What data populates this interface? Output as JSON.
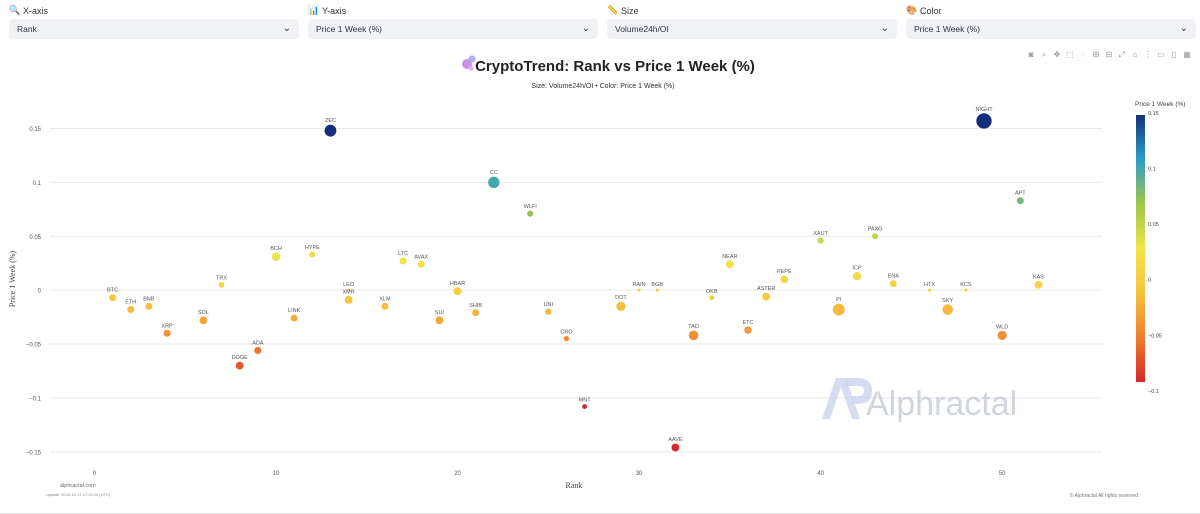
{
  "controls": [
    {
      "label": "X-axis",
      "icon": "magnifier-icon",
      "glyph": "🔍",
      "value": "Rank"
    },
    {
      "label": "Y-axis",
      "icon": "bar-chart-icon",
      "glyph": "📊",
      "value": "Price 1 Week (%)"
    },
    {
      "label": "Size",
      "icon": "ruler-icon",
      "glyph": "📏",
      "value": "Volume24h/OI"
    },
    {
      "label": "Color",
      "icon": "palette-icon",
      "glyph": "🎨",
      "value": "Price 1 Week (%)"
    }
  ],
  "modebar": [
    "camera-icon",
    "zoom-icon",
    "pan-icon",
    "box-select-icon",
    "lasso-select-icon",
    "zoom-in-icon",
    "zoom-out-icon",
    "autoscale-icon",
    "reset-axes-icon",
    "spike-lines-icon",
    "hover-closest-icon",
    "hover-compare-icon",
    "plotly-logo-icon"
  ],
  "chart_data": {
    "type": "scatter",
    "title": "CryptoTrend: Rank vs Price 1 Week (%)",
    "subtitle": "Size: Volume24h/OI • Color: Price 1 Week (%)",
    "xlabel": "Rank",
    "ylabel": "Price 1 Week (%)",
    "xlim": [
      -3,
      55.5
    ],
    "ylim": [
      -0.165,
      0.182
    ],
    "x_ticks": [
      0,
      10,
      20,
      30,
      40,
      50
    ],
    "y_ticks": [
      -0.15,
      -0.1,
      -0.05,
      0,
      0.05,
      0.1,
      0.15
    ],
    "y_tick_labels": [
      "−0.15",
      "−0.1",
      "−0.05",
      "0",
      "0.05",
      "0.1",
      "0.15"
    ],
    "colorbar": {
      "title": "Price 1 Week (%)",
      "range": [
        -0.092,
        0.148
      ],
      "ticks": [
        0.15,
        0.1,
        0.05,
        0,
        -0.05,
        -0.1
      ],
      "tick_labels": [
        "0.15",
        "0.1",
        "0.05",
        "0",
        "−0.05",
        "−0.1"
      ],
      "colorscale": [
        "#d62728",
        "#ef7d2e",
        "#f7c33d",
        "#f2e44a",
        "#9cc84a",
        "#2e9ec8",
        "#12307a"
      ]
    },
    "grid": true,
    "points": [
      {
        "label": "BTC",
        "x": 1,
        "y": -0.007,
        "size": 1
      },
      {
        "label": "ETH",
        "x": 2,
        "y": -0.018,
        "size": 1
      },
      {
        "label": "BNB",
        "x": 3,
        "y": -0.015,
        "size": 1
      },
      {
        "label": "XRP",
        "x": 4,
        "y": -0.04,
        "size": 1
      },
      {
        "label": "SOL",
        "x": 6,
        "y": -0.028,
        "size": 1.2
      },
      {
        "label": "TRX",
        "x": 7,
        "y": 0.005,
        "size": 0.7
      },
      {
        "label": "DOGE",
        "x": 8,
        "y": -0.07,
        "size": 1.2
      },
      {
        "label": "ADA",
        "x": 9,
        "y": -0.056,
        "size": 1
      },
      {
        "label": "BCH",
        "x": 10,
        "y": 0.031,
        "size": 1.3
      },
      {
        "label": "LINK",
        "x": 11,
        "y": -0.026,
        "size": 1
      },
      {
        "label": "HYPE",
        "x": 12,
        "y": 0.033,
        "size": 0.8
      },
      {
        "label": "LEO",
        "x": 14,
        "y": 0,
        "size": 0.1
      },
      {
        "label": "XMR",
        "x": 14,
        "y": -0.009,
        "size": 1.2
      },
      {
        "label": "XLM",
        "x": 16,
        "y": -0.015,
        "size": 1
      },
      {
        "label": "LTC",
        "x": 17,
        "y": 0.027,
        "size": 1
      },
      {
        "label": "AVAX",
        "x": 18,
        "y": 0.024,
        "size": 1
      },
      {
        "label": "SUI",
        "x": 19,
        "y": -0.028,
        "size": 1.2
      },
      {
        "label": "HBAR",
        "x": 20,
        "y": -0.001,
        "size": 1.2
      },
      {
        "label": "SHIB",
        "x": 21,
        "y": -0.021,
        "size": 1
      },
      {
        "label": "CC",
        "x": 22,
        "y": 0.1,
        "size": 2
      },
      {
        "label": "WLFI",
        "x": 24,
        "y": 0.071,
        "size": 0.8
      },
      {
        "label": "UNI",
        "x": 25,
        "y": -0.02,
        "size": 0.8
      },
      {
        "label": "CRO",
        "x": 26,
        "y": -0.045,
        "size": 0.6
      },
      {
        "label": "MNT",
        "x": 27,
        "y": -0.108,
        "size": 0.5
      },
      {
        "label": "DOT",
        "x": 29,
        "y": -0.015,
        "size": 1.5
      },
      {
        "label": "RAIN",
        "x": 30,
        "y": 0,
        "size": 0.1
      },
      {
        "label": "BGB",
        "x": 31,
        "y": 0,
        "size": 0.1
      },
      {
        "label": "AAVE",
        "x": 32,
        "y": -0.146,
        "size": 1.2
      },
      {
        "label": "TAO",
        "x": 33,
        "y": -0.042,
        "size": 1.6
      },
      {
        "label": "OKB",
        "x": 34,
        "y": -0.007,
        "size": 0.5
      },
      {
        "label": "NEAR",
        "x": 35,
        "y": 0.024,
        "size": 1.2
      },
      {
        "label": "ETC",
        "x": 36,
        "y": -0.037,
        "size": 1.1
      },
      {
        "label": "ASTER",
        "x": 37,
        "y": -0.006,
        "size": 1.2
      },
      {
        "label": "PEPE",
        "x": 38,
        "y": 0.01,
        "size": 1.1
      },
      {
        "label": "XAUT",
        "x": 40,
        "y": 0.046,
        "size": 0.8
      },
      {
        "label": "PI",
        "x": 41,
        "y": -0.018,
        "size": 2.1
      },
      {
        "label": "ICP",
        "x": 42,
        "y": 0.013,
        "size": 1.3
      },
      {
        "label": "PAXG",
        "x": 43,
        "y": 0.05,
        "size": 0.8
      },
      {
        "label": "ENA",
        "x": 44,
        "y": 0.006,
        "size": 1
      },
      {
        "label": "HTX",
        "x": 46,
        "y": 0,
        "size": 0.1
      },
      {
        "label": "SKY",
        "x": 47,
        "y": -0.018,
        "size": 1.8
      },
      {
        "label": "KCS",
        "x": 48,
        "y": 0,
        "size": 0.1
      },
      {
        "label": "NIGHT",
        "x": 49,
        "y": 0.157,
        "size": 2.9
      },
      {
        "label": "WLD",
        "x": 50,
        "y": -0.042,
        "size": 1.5
      },
      {
        "label": "APT",
        "x": 51,
        "y": 0.083,
        "size": 1
      },
      {
        "label": "KAS",
        "x": 52,
        "y": 0.005,
        "size": 1.2
      },
      {
        "label": "ZEC",
        "x": 13,
        "y": 0.148,
        "size": 2.1
      }
    ],
    "annotations": {
      "source": "alphractal.com",
      "updated": "Update: 2025-12-17 17:33:19 (UTC)",
      "copyright": "© Alphractal All rights reserved",
      "watermark": "Alphractal"
    }
  }
}
